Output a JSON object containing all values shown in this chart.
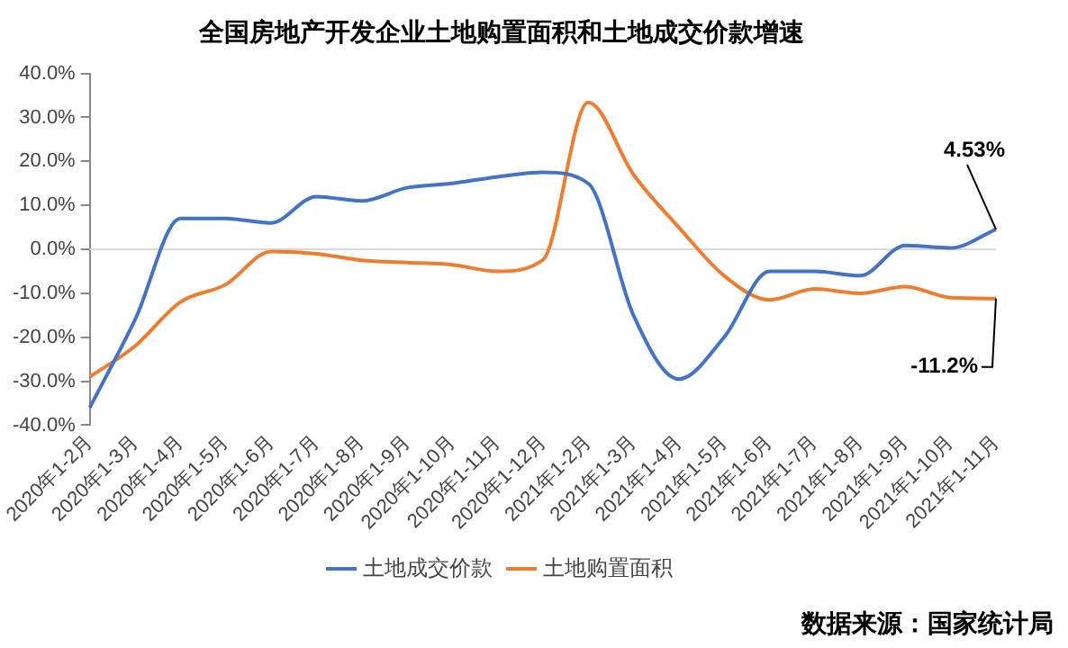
{
  "chart_data": {
    "type": "line",
    "title": "全国房地产开发企业土地购置面积和土地成交价款增速",
    "categories": [
      "2020年1-2月",
      "2020年1-3月",
      "2020年1-4月",
      "2020年1-5月",
      "2020年1-6月",
      "2020年1-7月",
      "2020年1-8月",
      "2020年1-9月",
      "2020年1-10月",
      "2020年1-11月",
      "2020年1-12月",
      "2021年1-2月",
      "2021年1-3月",
      "2021年1-4月",
      "2021年1-5月",
      "2021年1-6月",
      "2021年1-7月",
      "2021年1-8月",
      "2021年1-9月",
      "2021年1-10月",
      "2021年1-11月"
    ],
    "series": [
      {
        "name": "土地成交价款",
        "color": "#4472c4",
        "values": [
          -36,
          -16,
          7,
          7,
          6,
          12,
          11,
          14,
          15,
          16.5,
          17.5,
          15,
          -15,
          -29.5,
          -20,
          -5,
          -5,
          -6,
          0.9,
          0.3,
          4.53
        ]
      },
      {
        "name": "土地购置面积",
        "color": "#ed7d31",
        "values": [
          -29,
          -22,
          -12,
          -8,
          -0.5,
          -1,
          -2.5,
          -3,
          -3.5,
          -5,
          -2.4,
          33.4,
          17,
          5,
          -6,
          -11.5,
          -9,
          -10,
          -8.5,
          -11,
          -11.2
        ]
      }
    ],
    "ylim": [
      -40,
      40
    ],
    "yticks": [
      {
        "value": -40,
        "label": "-40.0%"
      },
      {
        "value": -30,
        "label": "-30.0%"
      },
      {
        "value": -20,
        "label": "-20.0%"
      },
      {
        "value": -10,
        "label": "-10.0%"
      },
      {
        "value": 0,
        "label": "0.0%"
      },
      {
        "value": 10,
        "label": "10.0%"
      },
      {
        "value": 20,
        "label": "20.0%"
      },
      {
        "value": 30,
        "label": "30.0%"
      },
      {
        "value": 40,
        "label": "40.0%"
      }
    ],
    "ref_lines": [
      {
        "axis": "y",
        "value": 0,
        "color": "#d9d9d9"
      }
    ],
    "grid": false,
    "legend": "bottom",
    "marker": "none",
    "line_style": "solid",
    "annotations": [
      {
        "text": "4.53%",
        "x": "2021年1-11月",
        "y": 4.53
      },
      {
        "text": "-11.2%",
        "x": "2021年1-11月",
        "y": -11.2
      },
      "数据来源：国家统计局"
    ]
  }
}
